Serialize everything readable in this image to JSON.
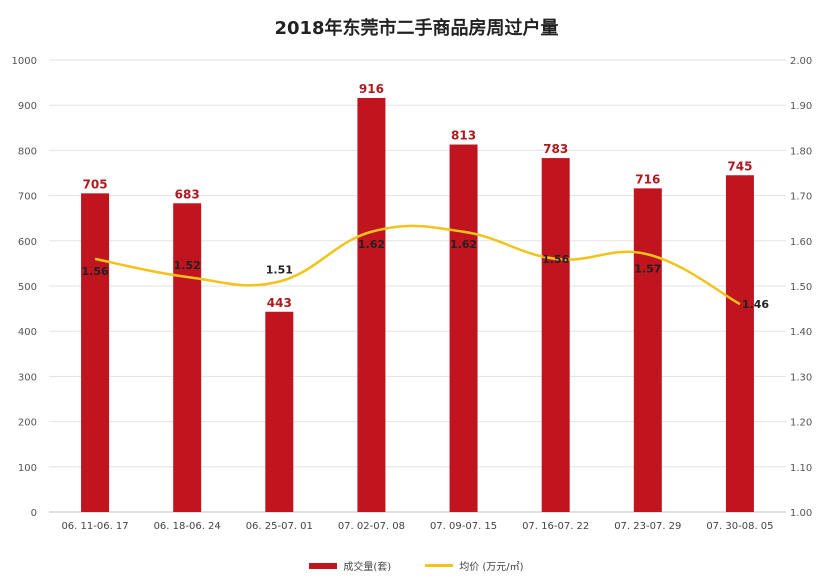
{
  "chart_data": {
    "type": "bar",
    "title": "2018年东莞市二手商品房周过户量",
    "categories": [
      "06.11-06.17",
      "06.18-06.24",
      "06.25-07.01",
      "07.02-07.08",
      "07.09-07.15",
      "07.16-07.22",
      "07.23-07.29",
      "07.30-08.05"
    ],
    "category_labels": [
      "06. 11-06. 17",
      "06. 18-06. 24",
      "06. 25-07. 01",
      "07. 02-07. 08",
      "07. 09-07. 15",
      "07. 16-07. 22",
      "07. 23-07. 29",
      "07. 30-08. 05"
    ],
    "series": [
      {
        "name": "成交量(套)",
        "type": "bar",
        "axis": "left",
        "color": "#c0151e",
        "values": [
          705,
          683,
          443,
          916,
          813,
          783,
          716,
          745
        ],
        "labels": [
          "705",
          "683",
          "443",
          "916",
          "813",
          "783",
          "716",
          "745"
        ]
      },
      {
        "name": "均价 (万元/㎡)",
        "type": "line",
        "axis": "right",
        "color": "#f2c31a",
        "values": [
          1.56,
          1.52,
          1.51,
          1.62,
          1.62,
          1.56,
          1.57,
          1.46
        ],
        "labels": [
          "1.56",
          "1.52",
          "1.51",
          "1.62",
          "1.62",
          "1.56",
          "1.57",
          "1.46"
        ]
      }
    ],
    "y_left": {
      "min": 0,
      "max": 1000,
      "ticks": [
        "0",
        "100",
        "200",
        "300",
        "400",
        "500",
        "600",
        "700",
        "800",
        "900",
        "1000"
      ]
    },
    "y_right": {
      "min": 1.0,
      "max": 2.0,
      "ticks": [
        "1.00",
        "1.10",
        "1.20",
        "1.30",
        "1.40",
        "1.50",
        "1.60",
        "1.70",
        "1.80",
        "1.90",
        "2.00"
      ]
    },
    "grid": true,
    "legend_position": "bottom"
  }
}
